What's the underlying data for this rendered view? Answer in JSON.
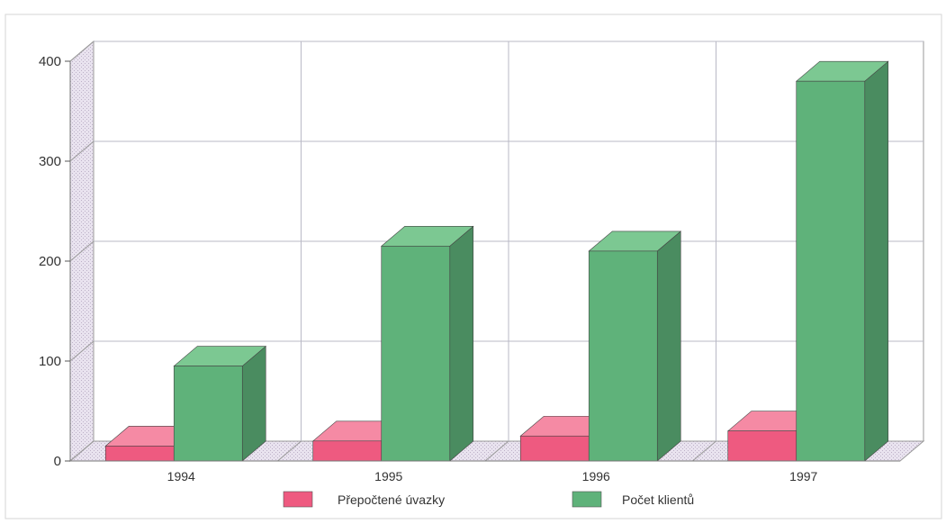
{
  "chart_data": {
    "type": "bar",
    "categories": [
      "1994",
      "1995",
      "1996",
      "1997"
    ],
    "series": [
      {
        "name": "Přepočtené úvazky",
        "values": [
          15,
          20,
          25,
          30
        ],
        "color_front": "#ee5a80",
        "color_top": "#f58aa4",
        "color_side": "#c2406a"
      },
      {
        "name": "Počet klientů",
        "values": [
          95,
          215,
          210,
          380
        ],
        "color_front": "#5fb27a",
        "color_top": "#7cc892",
        "color_side": "#4a8c60"
      }
    ],
    "yticks": [
      0,
      100,
      200,
      300,
      400
    ],
    "ylim": [
      0,
      400
    ],
    "title": "",
    "xlabel": "",
    "ylabel": "",
    "grid": true,
    "legend_position": "bottom"
  }
}
